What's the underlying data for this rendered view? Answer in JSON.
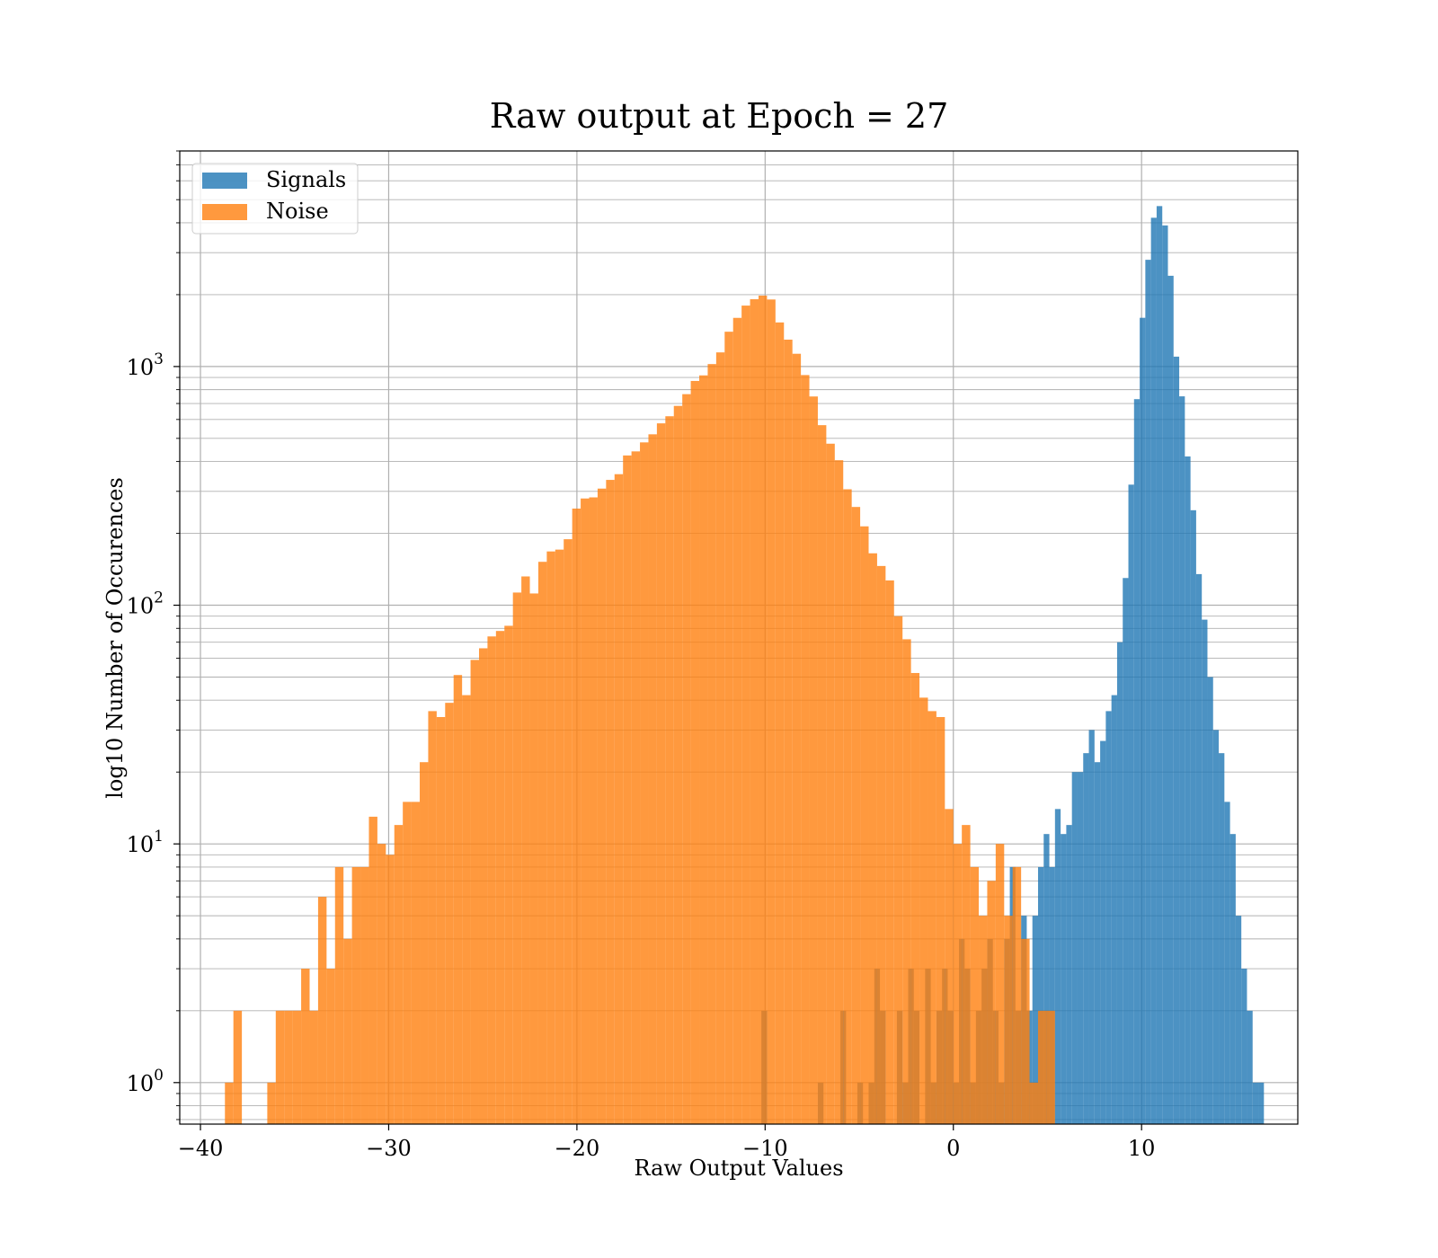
{
  "chart_data": {
    "type": "bar",
    "title": "Raw output at Epoch = 27",
    "xlabel": "Raw Output Values",
    "ylabel": "log10 Number of Occurences",
    "xlim": [
      -41.1,
      18.3
    ],
    "ylim": [
      0.67,
      8000
    ],
    "yscale": "log",
    "grid": true,
    "legend_position": "top-left",
    "x_ticks": [
      -40,
      -30,
      -20,
      -10,
      0,
      10
    ],
    "x_tick_labels": [
      "−40",
      "−30",
      "−20",
      "−10",
      "0",
      "10"
    ],
    "y_ticks": [
      1,
      10,
      100,
      1000
    ],
    "y_tick_labels": [
      {
        "base": "10",
        "exp": "0"
      },
      {
        "base": "10",
        "exp": "1"
      },
      {
        "base": "10",
        "exp": "2"
      },
      {
        "base": "10",
        "exp": "3"
      }
    ],
    "series": [
      {
        "name": "Signals",
        "color": "#1f77b4",
        "opacity": 0.8,
        "bins": [
          [
            -10.2,
            -9.9,
            2
          ],
          [
            -7.2,
            -6.9,
            1
          ],
          [
            -6.0,
            -5.7,
            2
          ],
          [
            -5.1,
            -4.8,
            1
          ],
          [
            -4.5,
            -4.2,
            1
          ],
          [
            -4.2,
            -3.9,
            3
          ],
          [
            -3.9,
            -3.6,
            2
          ],
          [
            -3.0,
            -2.7,
            2
          ],
          [
            -2.7,
            -2.4,
            1
          ],
          [
            -2.4,
            -2.1,
            3
          ],
          [
            -2.1,
            -1.8,
            2
          ],
          [
            -1.5,
            -1.2,
            3
          ],
          [
            -1.2,
            -0.9,
            1
          ],
          [
            -0.9,
            -0.6,
            2
          ],
          [
            -0.6,
            -0.3,
            3
          ],
          [
            -0.3,
            0.0,
            2
          ],
          [
            0.0,
            0.3,
            1
          ],
          [
            0.3,
            0.6,
            4
          ],
          [
            0.6,
            0.9,
            3
          ],
          [
            0.9,
            1.2,
            1
          ],
          [
            1.2,
            1.5,
            2
          ],
          [
            1.5,
            1.8,
            3
          ],
          [
            1.8,
            2.1,
            4
          ],
          [
            2.1,
            2.4,
            2
          ],
          [
            2.4,
            2.7,
            1
          ],
          [
            2.7,
            3.0,
            4
          ],
          [
            3.0,
            3.3,
            8
          ],
          [
            3.3,
            3.6,
            2
          ],
          [
            3.6,
            3.9,
            5
          ],
          [
            3.9,
            4.2,
            2
          ],
          [
            4.2,
            4.5,
            5
          ],
          [
            4.5,
            4.8,
            8
          ],
          [
            4.8,
            5.1,
            11
          ],
          [
            5.1,
            5.4,
            8
          ],
          [
            5.4,
            5.7,
            14
          ],
          [
            5.7,
            6.0,
            11
          ],
          [
            6.0,
            6.3,
            12
          ],
          [
            6.3,
            6.6,
            20
          ],
          [
            6.6,
            6.9,
            20
          ],
          [
            6.9,
            7.2,
            24
          ],
          [
            7.2,
            7.5,
            30
          ],
          [
            7.5,
            7.8,
            22
          ],
          [
            7.8,
            8.1,
            27
          ],
          [
            8.1,
            8.4,
            36
          ],
          [
            8.4,
            8.7,
            42
          ],
          [
            8.7,
            9.0,
            70
          ],
          [
            9.0,
            9.3,
            130
          ],
          [
            9.3,
            9.6,
            320
          ],
          [
            9.6,
            9.9,
            730
          ],
          [
            9.9,
            10.2,
            1600
          ],
          [
            10.2,
            10.5,
            2800
          ],
          [
            10.5,
            10.8,
            4200
          ],
          [
            10.8,
            11.1,
            4700
          ],
          [
            11.1,
            11.4,
            3900
          ],
          [
            11.4,
            11.7,
            2400
          ],
          [
            11.7,
            12.0,
            1100
          ],
          [
            12.0,
            12.3,
            750
          ],
          [
            12.3,
            12.6,
            420
          ],
          [
            12.6,
            12.9,
            250
          ],
          [
            12.9,
            13.2,
            135
          ],
          [
            13.2,
            13.5,
            87
          ],
          [
            13.5,
            13.8,
            50
          ],
          [
            13.8,
            14.1,
            30
          ],
          [
            14.1,
            14.4,
            24
          ],
          [
            14.4,
            14.7,
            15
          ],
          [
            14.7,
            15.0,
            11
          ],
          [
            15.0,
            15.3,
            5
          ],
          [
            15.3,
            15.6,
            3
          ],
          [
            15.6,
            15.9,
            2
          ],
          [
            15.9,
            16.2,
            1
          ],
          [
            16.2,
            16.5,
            1
          ]
        ]
      },
      {
        "name": "Noise",
        "color": "#ff7f0e",
        "opacity": 0.8,
        "bins": [
          [
            -38.7,
            -38.25,
            1
          ],
          [
            -38.25,
            -37.8,
            2
          ],
          [
            -36.45,
            -36.0,
            1
          ],
          [
            -36.0,
            -35.55,
            2
          ],
          [
            -35.55,
            -35.1,
            2
          ],
          [
            -35.1,
            -34.65,
            2
          ],
          [
            -34.65,
            -34.2,
            3
          ],
          [
            -34.2,
            -33.75,
            2
          ],
          [
            -33.75,
            -33.3,
            6
          ],
          [
            -33.3,
            -32.85,
            3
          ],
          [
            -32.85,
            -32.4,
            8
          ],
          [
            -32.4,
            -31.95,
            4
          ],
          [
            -31.95,
            -31.5,
            8
          ],
          [
            -31.5,
            -31.05,
            8
          ],
          [
            -31.05,
            -30.6,
            13
          ],
          [
            -30.6,
            -30.15,
            10
          ],
          [
            -30.15,
            -29.7,
            9
          ],
          [
            -29.7,
            -29.25,
            12
          ],
          [
            -29.25,
            -28.8,
            15
          ],
          [
            -28.8,
            -28.35,
            15
          ],
          [
            -28.35,
            -27.9,
            22
          ],
          [
            -27.9,
            -27.45,
            36
          ],
          [
            -27.45,
            -27.0,
            34
          ],
          [
            -27.0,
            -26.55,
            39
          ],
          [
            -26.55,
            -26.1,
            51
          ],
          [
            -26.1,
            -25.65,
            42
          ],
          [
            -25.65,
            -25.2,
            59
          ],
          [
            -25.2,
            -24.75,
            66
          ],
          [
            -24.75,
            -24.3,
            74
          ],
          [
            -24.3,
            -23.85,
            78
          ],
          [
            -23.85,
            -23.4,
            82
          ],
          [
            -23.4,
            -22.95,
            113
          ],
          [
            -22.95,
            -22.5,
            132
          ],
          [
            -22.5,
            -22.05,
            112
          ],
          [
            -22.05,
            -21.6,
            152
          ],
          [
            -21.6,
            -21.15,
            168
          ],
          [
            -21.15,
            -20.7,
            171
          ],
          [
            -20.7,
            -20.25,
            189
          ],
          [
            -20.25,
            -19.8,
            254
          ],
          [
            -19.8,
            -19.35,
            280
          ],
          [
            -19.35,
            -18.9,
            283
          ],
          [
            -18.9,
            -18.45,
            308
          ],
          [
            -18.45,
            -18.0,
            335
          ],
          [
            -18.0,
            -17.55,
            354
          ],
          [
            -17.55,
            -17.1,
            424
          ],
          [
            -17.1,
            -16.65,
            441
          ],
          [
            -16.65,
            -16.2,
            481
          ],
          [
            -16.2,
            -15.75,
            520
          ],
          [
            -15.75,
            -15.3,
            578
          ],
          [
            -15.3,
            -14.85,
            619
          ],
          [
            -14.85,
            -14.4,
            684
          ],
          [
            -14.4,
            -13.95,
            766
          ],
          [
            -13.95,
            -13.5,
            870
          ],
          [
            -13.5,
            -13.05,
            918
          ],
          [
            -13.05,
            -12.6,
            1024
          ],
          [
            -12.6,
            -12.15,
            1146
          ],
          [
            -12.15,
            -11.7,
            1399
          ],
          [
            -11.7,
            -11.25,
            1599
          ],
          [
            -11.25,
            -10.8,
            1800
          ],
          [
            -10.8,
            -10.35,
            1914
          ],
          [
            -10.35,
            -9.9,
            1982
          ],
          [
            -9.9,
            -9.45,
            1909
          ],
          [
            -9.45,
            -9.0,
            1530
          ],
          [
            -9.0,
            -8.55,
            1296
          ],
          [
            -8.55,
            -8.1,
            1131
          ],
          [
            -8.1,
            -7.65,
            921
          ],
          [
            -7.65,
            -7.2,
            749
          ],
          [
            -7.2,
            -6.75,
            568
          ],
          [
            -6.75,
            -6.3,
            475
          ],
          [
            -6.3,
            -5.85,
            405
          ],
          [
            -5.85,
            -5.4,
            306
          ],
          [
            -5.4,
            -4.95,
            258
          ],
          [
            -4.95,
            -4.5,
            214
          ],
          [
            -4.5,
            -4.05,
            165
          ],
          [
            -4.05,
            -3.6,
            146
          ],
          [
            -3.6,
            -3.15,
            127
          ],
          [
            -3.15,
            -2.7,
            90
          ],
          [
            -2.7,
            -2.25,
            72
          ],
          [
            -2.25,
            -1.8,
            52
          ],
          [
            -1.8,
            -1.35,
            41
          ],
          [
            -1.35,
            -0.9,
            36
          ],
          [
            -0.9,
            -0.45,
            34
          ],
          [
            -0.45,
            0.0,
            14
          ],
          [
            0.0,
            0.45,
            10
          ],
          [
            0.45,
            0.9,
            12
          ],
          [
            0.9,
            1.35,
            8
          ],
          [
            1.35,
            1.8,
            5
          ],
          [
            1.8,
            2.25,
            7
          ],
          [
            2.25,
            2.7,
            10
          ],
          [
            2.7,
            3.15,
            5
          ],
          [
            3.15,
            3.6,
            8
          ],
          [
            3.6,
            4.05,
            4
          ],
          [
            4.05,
            4.5,
            1
          ],
          [
            4.5,
            4.95,
            2
          ],
          [
            4.95,
            5.4,
            2
          ]
        ]
      }
    ]
  }
}
